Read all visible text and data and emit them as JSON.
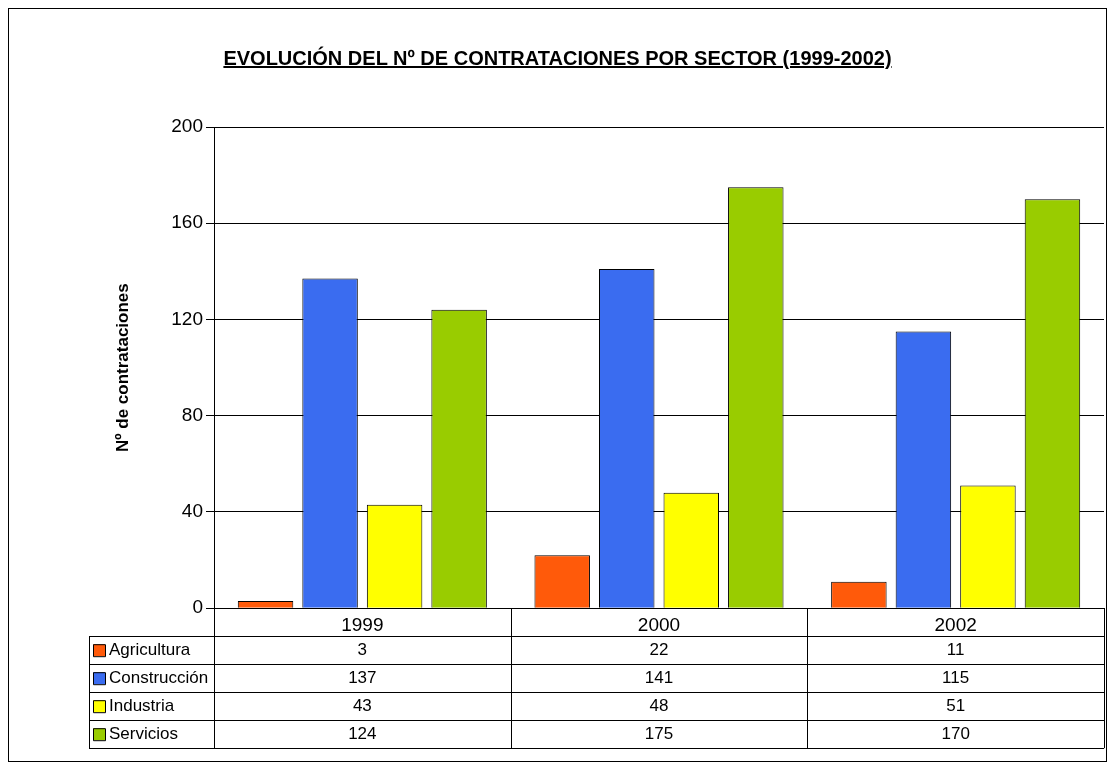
{
  "chart_data": {
    "type": "bar",
    "title": "EVOLUCIÓN DEL Nº DE CONTRATACIONES POR SECTOR (1999-2002)",
    "ylabel": "Nº de contrataciones",
    "categories": [
      "1999",
      "2000",
      "2002"
    ],
    "series": [
      {
        "name": "Agricultura",
        "color": "#ff5a0a",
        "values": [
          3,
          22,
          11
        ]
      },
      {
        "name": "Construcción",
        "color": "#3a6cf0",
        "values": [
          137,
          141,
          115
        ]
      },
      {
        "name": "Industria",
        "color": "#ffff00",
        "values": [
          43,
          48,
          51
        ]
      },
      {
        "name": "Servicios",
        "color": "#99cc00",
        "values": [
          124,
          175,
          170
        ]
      }
    ],
    "ylim": [
      0,
      200
    ],
    "yticks": [
      0,
      40,
      80,
      120,
      160,
      200
    ],
    "grid": "y",
    "legend": "bottom",
    "data_labels": true
  }
}
